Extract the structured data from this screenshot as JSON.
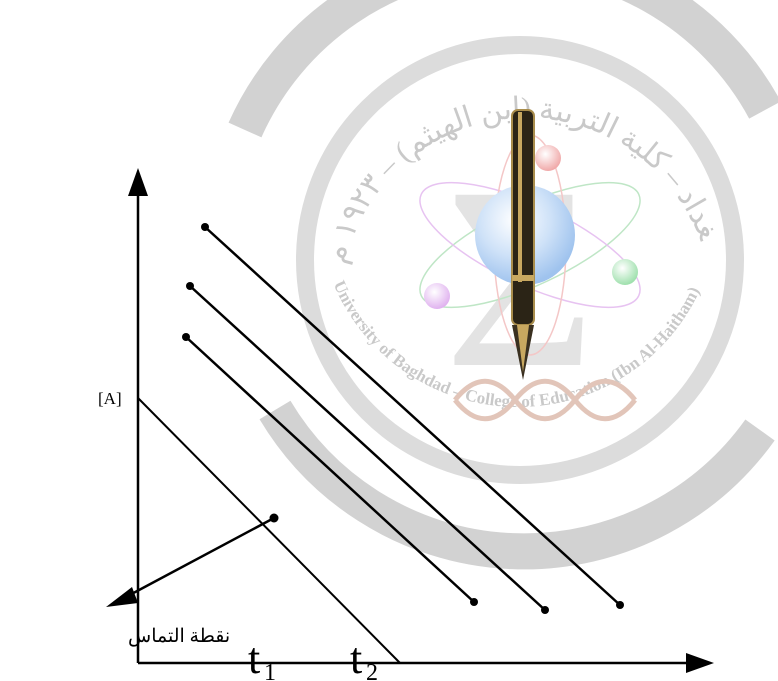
{
  "diagram": {
    "y_intercept_label": "[A]",
    "contact_point_label": "نقطة التماس",
    "t1_base": "t",
    "t1_sub": "1",
    "t2_base": "t",
    "t2_sub": "2"
  },
  "watermark": {
    "arabic_text": "جامعة بغداد – كلية التربية (ابن الهيثم) – ١٩٢٣ م",
    "english_text": "University of Baghdad – College of Education (Ibn Al-Haitham) – 1923",
    "symbol": "Σ"
  },
  "colors": {
    "line": "#000000",
    "watermark_ring": "#d2d2d2",
    "watermark_symbol": "#e3e3e3",
    "watermark_text": "#c9c9c9",
    "globe": "#bcd6f4",
    "orbit_red": "#f4b7b7",
    "orbit_green": "#b6eac0",
    "orbit_violet": "#e7c3f1"
  }
}
